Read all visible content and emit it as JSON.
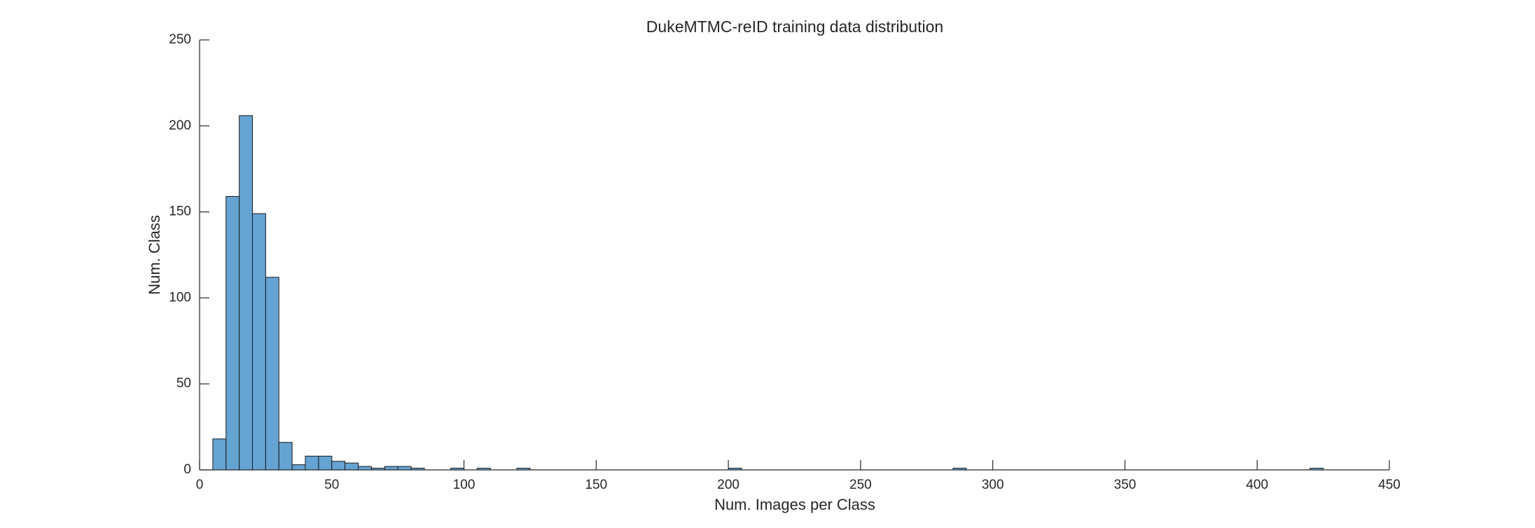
{
  "chart_data": {
    "type": "histogram",
    "title": "DukeMTMC-reID training data distribution",
    "x_label": "Num. Images per Class",
    "y_label": "Num. Class",
    "bins": [
      5,
      10,
      15,
      20,
      25,
      30,
      35,
      40,
      45,
      50,
      55,
      60,
      65,
      70,
      75,
      80,
      85,
      90,
      95,
      100,
      105,
      110,
      115,
      120,
      125,
      130,
      135,
      140,
      145,
      150,
      155,
      160,
      165,
      170,
      175,
      180,
      185,
      190,
      195,
      200,
      205,
      210,
      215,
      220,
      225,
      230,
      235,
      240,
      245,
      250,
      255,
      260,
      265,
      270,
      275,
      280,
      285,
      290,
      295,
      300,
      305,
      310,
      315,
      320,
      325,
      330,
      335,
      340,
      345,
      350,
      355,
      360,
      365,
      370,
      375,
      380,
      385,
      390,
      395,
      400,
      405,
      410,
      415,
      420,
      425
    ],
    "values": [
      18,
      159,
      206,
      149,
      112,
      16,
      3,
      8,
      8,
      5,
      4,
      2,
      1,
      2,
      2,
      1,
      0,
      0,
      1,
      0,
      1,
      0,
      0,
      1,
      0,
      0,
      0,
      0,
      0,
      0,
      0,
      0,
      0,
      0,
      0,
      0,
      0,
      0,
      0,
      1,
      0,
      0,
      0,
      0,
      0,
      0,
      0,
      0,
      0,
      0,
      0,
      0,
      0,
      0,
      0,
      0,
      1,
      0,
      0,
      0,
      0,
      0,
      0,
      0,
      0,
      0,
      0,
      0,
      0,
      0,
      0,
      0,
      0,
      0,
      0,
      0,
      0,
      0,
      0,
      0,
      0,
      0,
      0,
      1
    ],
    "color": "#65a3d3",
    "xlim": [
      0,
      450
    ],
    "xticks": [
      0,
      50,
      100,
      150,
      200,
      250,
      300,
      350,
      400,
      450
    ],
    "ylim": [
      0,
      250
    ],
    "yticks": [
      0,
      50,
      100,
      150,
      200,
      250
    ]
  }
}
